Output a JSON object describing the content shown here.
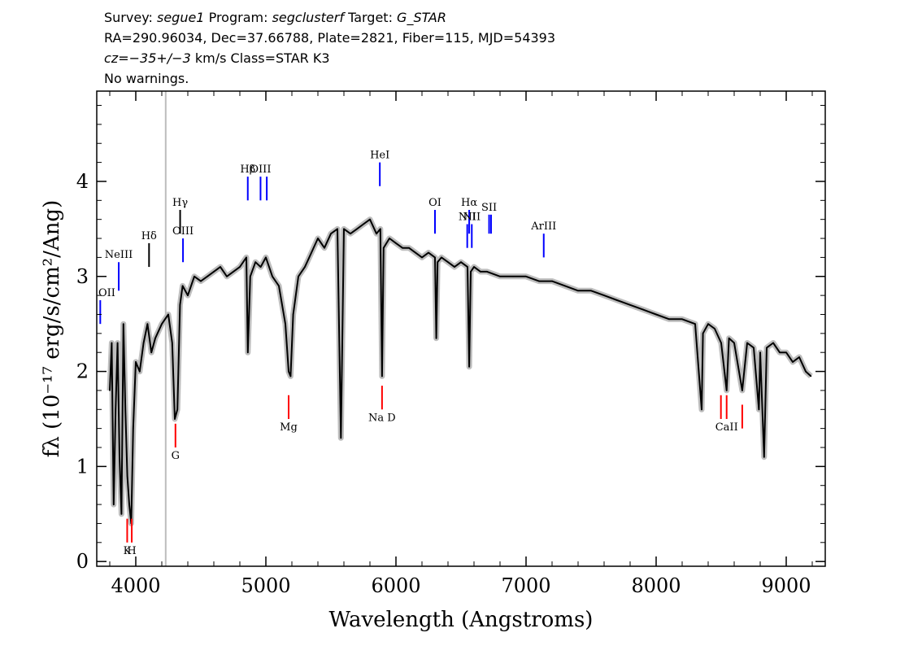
{
  "header": {
    "survey_label": "Survey:",
    "survey_value": "segue1",
    "program_label": "Program:",
    "program_value": "segclusterf",
    "target_label": "Target:",
    "target_value": "G_STAR",
    "line2": "RA=290.96034, Dec=37.66788, Plate=2821, Fiber=115, MJD=54393",
    "cz_label": "cz=",
    "cz_value": "−35+/−3",
    "cz_unit_class": " km/s Class=STAR K3",
    "line4": "No warnings."
  },
  "chart_data": {
    "type": "line",
    "xlabel": "Wavelength (Angstroms)",
    "ylabel": "fλ (10⁻¹⁷ erg/s/cm²/Ang)",
    "xlim": [
      3700,
      9300
    ],
    "ylim": [
      -0.05,
      4.95
    ],
    "x_ticks": [
      4000,
      5000,
      6000,
      7000,
      8000,
      9000
    ],
    "y_ticks": [
      0,
      1,
      2,
      3,
      4
    ],
    "grid": false,
    "colors": {
      "flux": "#000000",
      "error_band": "#bdbdbd",
      "emission_marker": "#0000ff",
      "absorption_marker": "#ff0000",
      "other_marker": "#000000",
      "vertical_line": "#bdbdbd"
    },
    "vertical_line_x": 4230,
    "flux_series": {
      "name": "flux",
      "x": [
        3800,
        3815,
        3830,
        3845,
        3860,
        3875,
        3890,
        3905,
        3920,
        3935,
        3950,
        3965,
        3980,
        4000,
        4030,
        4060,
        4090,
        4120,
        4150,
        4200,
        4250,
        4280,
        4300,
        4320,
        4340,
        4360,
        4400,
        4450,
        4500,
        4550,
        4600,
        4650,
        4700,
        4750,
        4800,
        4850,
        4861,
        4880,
        4920,
        4960,
        5000,
        5050,
        5100,
        5150,
        5175,
        5190,
        5210,
        5250,
        5300,
        5350,
        5400,
        5450,
        5500,
        5550,
        5577,
        5600,
        5650,
        5700,
        5750,
        5800,
        5850,
        5880,
        5893,
        5905,
        5950,
        6000,
        6050,
        6100,
        6150,
        6200,
        6250,
        6300,
        6310,
        6320,
        6350,
        6400,
        6450,
        6500,
        6550,
        6563,
        6575,
        6600,
        6650,
        6700,
        6800,
        6900,
        7000,
        7100,
        7200,
        7300,
        7400,
        7500,
        7600,
        7700,
        7800,
        7900,
        8000,
        8100,
        8200,
        8300,
        8350,
        8360,
        8400,
        8450,
        8500,
        8542,
        8560,
        8600,
        8662,
        8700,
        8750,
        8790,
        8800,
        8830,
        8850,
        8900,
        8950,
        9000,
        9050,
        9100,
        9150,
        9190
      ],
      "y": [
        1.8,
        2.3,
        0.6,
        1.6,
        2.3,
        1.1,
        0.5,
        2.5,
        1.6,
        0.9,
        0.6,
        0.4,
        1.4,
        2.1,
        2.0,
        2.3,
        2.5,
        2.2,
        2.35,
        2.5,
        2.6,
        2.3,
        1.5,
        1.6,
        2.7,
        2.9,
        2.8,
        3.0,
        2.95,
        3.0,
        3.05,
        3.1,
        3.0,
        3.05,
        3.1,
        3.2,
        2.2,
        3.0,
        3.15,
        3.1,
        3.2,
        3.0,
        2.9,
        2.5,
        2.0,
        1.95,
        2.6,
        3.0,
        3.1,
        3.25,
        3.4,
        3.3,
        3.45,
        3.5,
        1.3,
        3.5,
        3.45,
        3.5,
        3.55,
        3.6,
        3.45,
        3.5,
        1.95,
        3.3,
        3.4,
        3.35,
        3.3,
        3.3,
        3.25,
        3.2,
        3.25,
        3.2,
        2.35,
        3.15,
        3.2,
        3.15,
        3.1,
        3.15,
        3.1,
        2.05,
        3.05,
        3.1,
        3.05,
        3.05,
        3.0,
        3.0,
        3.0,
        2.95,
        2.95,
        2.9,
        2.85,
        2.85,
        2.8,
        2.75,
        2.7,
        2.65,
        2.6,
        2.55,
        2.55,
        2.5,
        1.6,
        2.4,
        2.5,
        2.45,
        2.3,
        1.8,
        2.35,
        2.3,
        1.8,
        2.3,
        2.25,
        1.6,
        2.2,
        1.1,
        2.25,
        2.3,
        2.2,
        2.2,
        2.1,
        2.15,
        2.0,
        1.95
      ]
    },
    "emission_lines": [
      {
        "label": "OII",
        "x": 3727,
        "y_low": 2.5,
        "y_high": 2.75,
        "color": "#0000ff"
      },
      {
        "label": "NeIII",
        "x": 3869,
        "y_low": 2.85,
        "y_high": 3.15,
        "color": "#0000ff"
      },
      {
        "label": "Hδ",
        "x": 4102,
        "y_low": 3.1,
        "y_high": 3.35,
        "color": "#000000"
      },
      {
        "label": "Hγ",
        "x": 4341,
        "y_low": 3.45,
        "y_high": 3.7,
        "color": "#000000"
      },
      {
        "label": "OIII",
        "x": 4363,
        "y_low": 3.15,
        "y_high": 3.4,
        "color": "#0000ff"
      },
      {
        "label": "Hβ",
        "x": 4861,
        "y_low": 3.8,
        "y_high": 4.05,
        "color": "#0000ff"
      },
      {
        "label": "OIII",
        "x": 4959,
        "y_low": 3.8,
        "y_high": 4.05,
        "color": "#0000ff"
      },
      {
        "label": "",
        "x": 5007,
        "y_low": 3.8,
        "y_high": 4.05,
        "color": "#0000ff"
      },
      {
        "label": "HeI",
        "x": 5876,
        "y_low": 3.95,
        "y_high": 4.2,
        "color": "#0000ff"
      },
      {
        "label": "OI",
        "x": 6300,
        "y_low": 3.45,
        "y_high": 3.7,
        "color": "#0000ff"
      },
      {
        "label": "NII",
        "x": 6548,
        "y_low": 3.3,
        "y_high": 3.55,
        "color": "#0000ff"
      },
      {
        "label": "Hα",
        "x": 6563,
        "y_low": 3.45,
        "y_high": 3.7,
        "color": "#0000ff"
      },
      {
        "label": "NII",
        "x": 6583,
        "y_low": 3.3,
        "y_high": 3.55,
        "color": "#0000ff"
      },
      {
        "label": "SII",
        "x": 6716,
        "y_low": 3.45,
        "y_high": 3.65,
        "color": "#0000ff"
      },
      {
        "label": "",
        "x": 6731,
        "y_low": 3.45,
        "y_high": 3.65,
        "color": "#0000ff"
      },
      {
        "label": "ArIII",
        "x": 7136,
        "y_low": 3.2,
        "y_high": 3.45,
        "color": "#0000ff"
      }
    ],
    "absorption_lines": [
      {
        "label": "K",
        "x": 3934,
        "y_low": 0.2,
        "y_high": 0.45,
        "color": "#ff0000"
      },
      {
        "label": "H",
        "x": 3969,
        "y_low": 0.2,
        "y_high": 0.45,
        "color": "#ff0000"
      },
      {
        "label": "G",
        "x": 4305,
        "y_low": 1.2,
        "y_high": 1.45,
        "color": "#ff0000"
      },
      {
        "label": "Mg",
        "x": 5175,
        "y_low": 1.5,
        "y_high": 1.75,
        "color": "#ff0000"
      },
      {
        "label": "Na D",
        "x": 5893,
        "y_low": 1.6,
        "y_high": 1.85,
        "color": "#ff0000"
      },
      {
        "label": "",
        "x": 8498,
        "y_low": 1.5,
        "y_high": 1.75,
        "color": "#ff0000"
      },
      {
        "label": "CaII",
        "x": 8542,
        "y_low": 1.5,
        "y_high": 1.75,
        "color": "#ff0000"
      },
      {
        "label": "",
        "x": 8662,
        "y_low": 1.4,
        "y_high": 1.65,
        "color": "#ff0000"
      }
    ]
  }
}
